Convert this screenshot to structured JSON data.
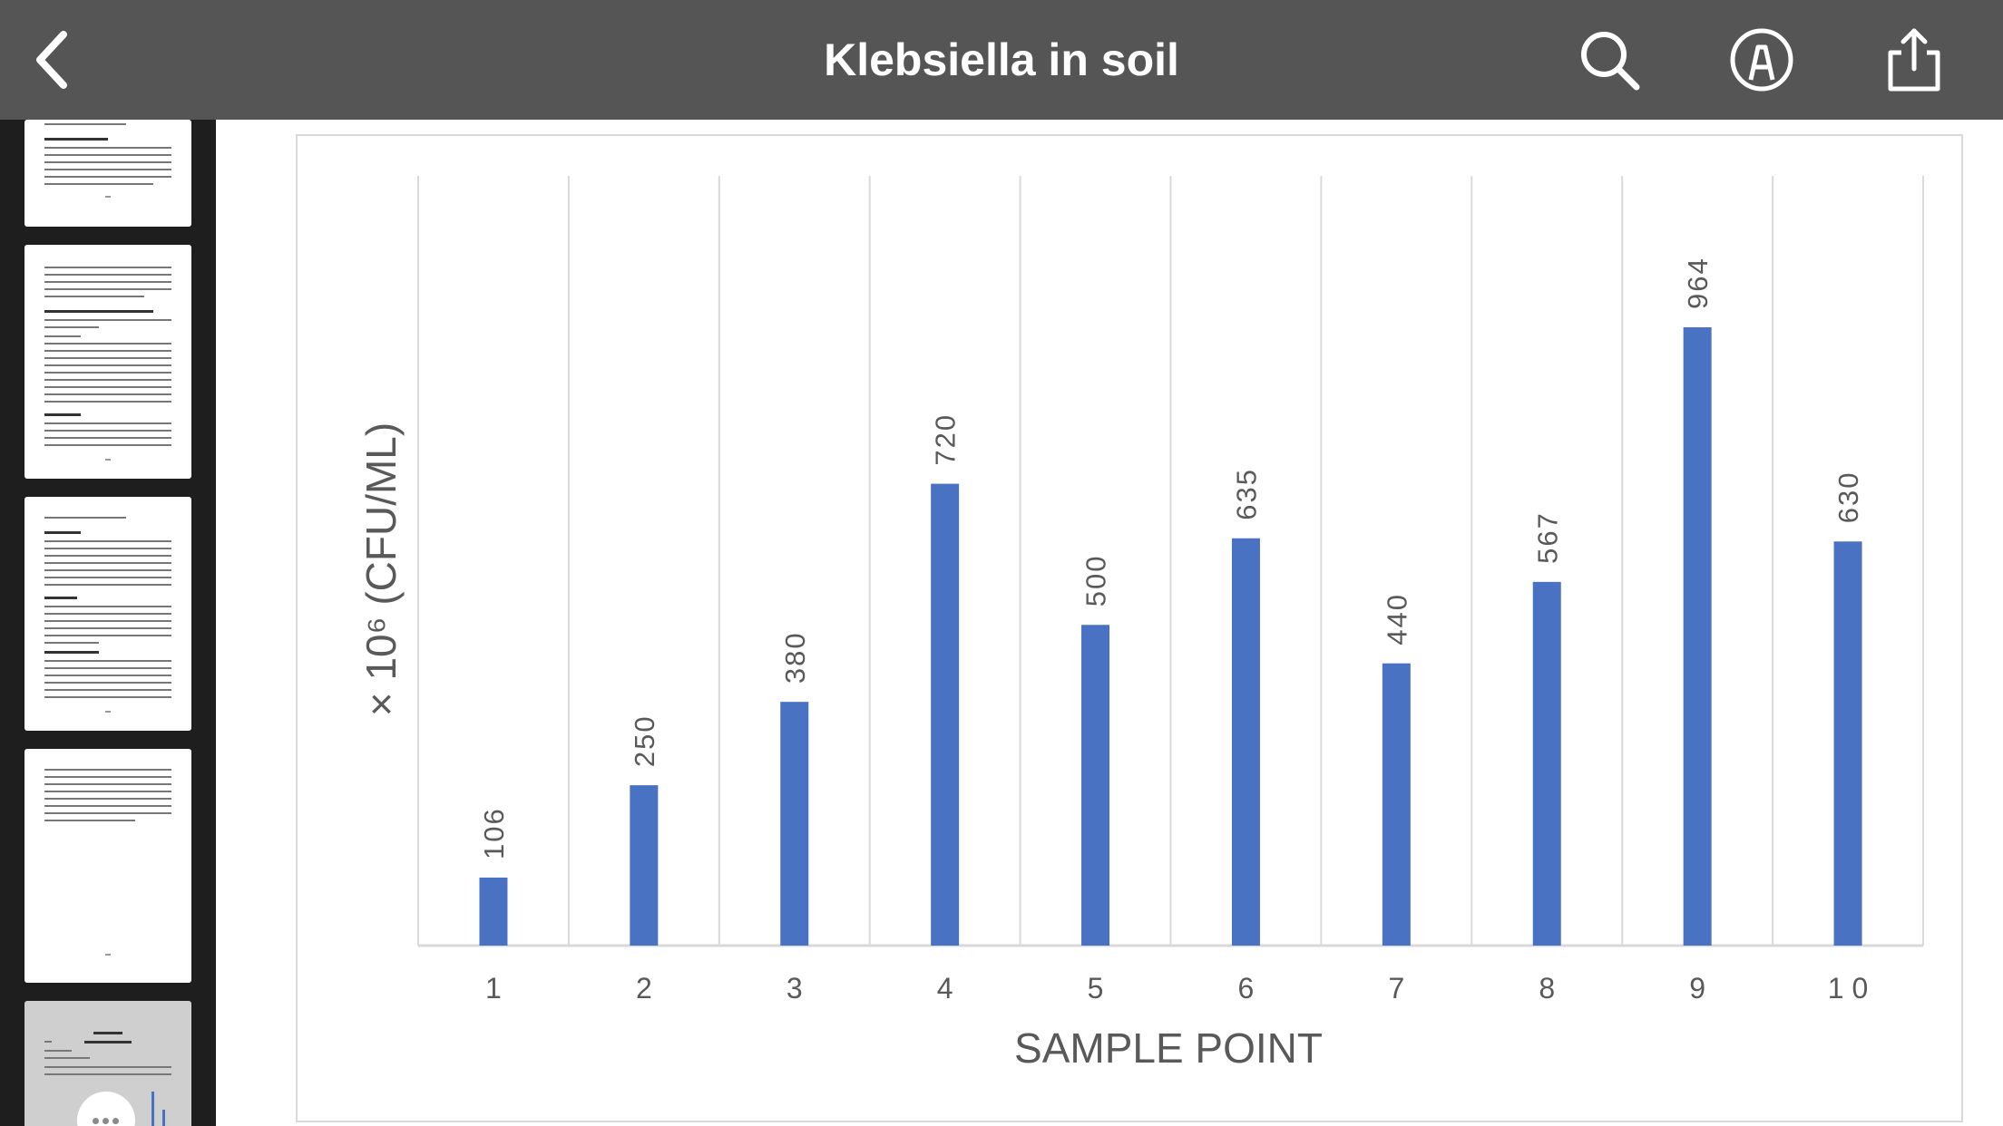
{
  "toolbar": {
    "title": "Klebsiella in soil",
    "back_icon": "chevron-left-icon",
    "search_icon": "search-icon",
    "markup_icon": "markup-pen-icon",
    "share_icon": "share-icon"
  },
  "colors": {
    "toolbar_bg": "#555555",
    "sidebar_bg": "#1e1e1e",
    "bar": "#4a72c2",
    "grid": "#d9d9d9",
    "text": "#595959"
  },
  "chart_data": {
    "type": "bar",
    "categories": [
      "1",
      "2",
      "3",
      "4",
      "5",
      "6",
      "7",
      "8",
      "9",
      "10"
    ],
    "values": [
      106,
      250,
      380,
      720,
      500,
      635,
      440,
      567,
      964,
      630
    ],
    "data_labels": [
      "106",
      "250",
      "380",
      "720",
      "500",
      "635",
      "440",
      "567",
      "964",
      "630"
    ],
    "tick_labels": [
      "1",
      "2",
      "3",
      "4",
      "5",
      "6",
      "7",
      "8",
      "9",
      "1 0"
    ],
    "xlabel": "SAMPLE POINT",
    "ylabel": "× 10⁶ (CFU/ML)",
    "ylim": [
      0,
      1200
    ],
    "grid": "vertical",
    "legend": "none"
  }
}
